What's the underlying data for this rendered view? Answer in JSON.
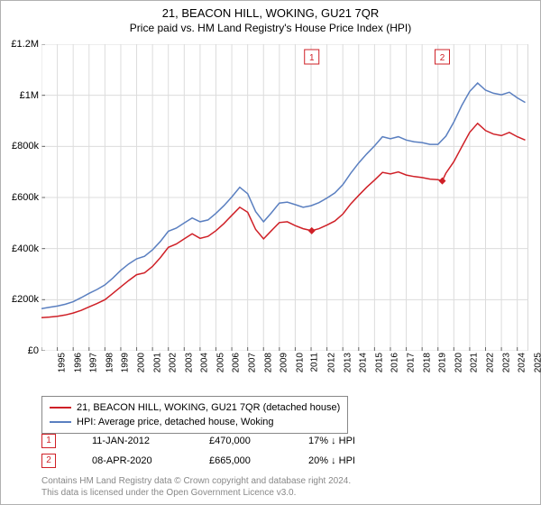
{
  "title": "21, BEACON HILL, WOKING, GU21 7QR",
  "subtitle": "Price paid vs. HM Land Registry's House Price Index (HPI)",
  "chart": {
    "type": "line",
    "background_color": "#ffffff",
    "plot_border_color": "#b0b0b0",
    "grid_color": "#dcdcdc",
    "font_family": "Arial",
    "title_fontsize": 13,
    "subtitle_fontsize": 12,
    "ylabel_fontsize": 11,
    "xlabel_fontsize": 10,
    "xlim": [
      1995,
      2025.7
    ],
    "ylim": [
      0,
      1200000
    ],
    "ytick_step": 200000,
    "yticks": [
      "£0",
      "£200k",
      "£400k",
      "£600k",
      "£800k",
      "£1M",
      "£1.2M"
    ],
    "xticks": [
      1995,
      1996,
      1997,
      1998,
      1999,
      2000,
      2001,
      2002,
      2003,
      2004,
      2005,
      2006,
      2007,
      2008,
      2009,
      2010,
      2011,
      2012,
      2013,
      2014,
      2015,
      2016,
      2017,
      2018,
      2019,
      2020,
      2021,
      2022,
      2023,
      2024,
      2025
    ],
    "series": [
      {
        "name": "21, BEACON HILL, WOKING, GU21 7QR (detached house)",
        "color": "#cf2027",
        "line_width": 1.5,
        "data": [
          [
            1995,
            130000
          ],
          [
            1995.5,
            132000
          ],
          [
            1996,
            135000
          ],
          [
            1996.5,
            140000
          ],
          [
            1997,
            148000
          ],
          [
            1997.5,
            158000
          ],
          [
            1998,
            172000
          ],
          [
            1998.5,
            185000
          ],
          [
            1999,
            200000
          ],
          [
            1999.5,
            225000
          ],
          [
            2000,
            250000
          ],
          [
            2000.5,
            275000
          ],
          [
            2001,
            298000
          ],
          [
            2001.5,
            305000
          ],
          [
            2002,
            330000
          ],
          [
            2002.5,
            365000
          ],
          [
            2003,
            405000
          ],
          [
            2003.5,
            418000
          ],
          [
            2004,
            438000
          ],
          [
            2004.5,
            458000
          ],
          [
            2005,
            440000
          ],
          [
            2005.5,
            448000
          ],
          [
            2006,
            470000
          ],
          [
            2006.5,
            498000
          ],
          [
            2007,
            530000
          ],
          [
            2007.5,
            562000
          ],
          [
            2008,
            542000
          ],
          [
            2008.5,
            475000
          ],
          [
            2009,
            438000
          ],
          [
            2009.5,
            470000
          ],
          [
            2010,
            502000
          ],
          [
            2010.5,
            505000
          ],
          [
            2011,
            490000
          ],
          [
            2011.5,
            478000
          ],
          [
            2012.04,
            470000
          ],
          [
            2012.5,
            478000
          ],
          [
            2013,
            492000
          ],
          [
            2013.5,
            508000
          ],
          [
            2014,
            535000
          ],
          [
            2014.5,
            575000
          ],
          [
            2015,
            608000
          ],
          [
            2015.5,
            640000
          ],
          [
            2016,
            668000
          ],
          [
            2016.5,
            698000
          ],
          [
            2017,
            692000
          ],
          [
            2017.5,
            700000
          ],
          [
            2018,
            688000
          ],
          [
            2018.5,
            682000
          ],
          [
            2019,
            678000
          ],
          [
            2019.5,
            672000
          ],
          [
            2020,
            670000
          ],
          [
            2020.27,
            665000
          ],
          [
            2020.5,
            695000
          ],
          [
            2021,
            740000
          ],
          [
            2021.5,
            798000
          ],
          [
            2022,
            855000
          ],
          [
            2022.5,
            890000
          ],
          [
            2023,
            862000
          ],
          [
            2023.5,
            848000
          ],
          [
            2024,
            842000
          ],
          [
            2024.5,
            855000
          ],
          [
            2025,
            838000
          ],
          [
            2025.5,
            825000
          ]
        ]
      },
      {
        "name": "HPI: Average price, detached house, Woking",
        "color": "#5a7fc0",
        "line_width": 1.5,
        "data": [
          [
            1995,
            165000
          ],
          [
            1995.5,
            170000
          ],
          [
            1996,
            175000
          ],
          [
            1996.5,
            182000
          ],
          [
            1997,
            192000
          ],
          [
            1997.5,
            208000
          ],
          [
            1998,
            225000
          ],
          [
            1998.5,
            240000
          ],
          [
            1999,
            258000
          ],
          [
            1999.5,
            285000
          ],
          [
            2000,
            315000
          ],
          [
            2000.5,
            340000
          ],
          [
            2001,
            360000
          ],
          [
            2001.5,
            370000
          ],
          [
            2002,
            395000
          ],
          [
            2002.5,
            428000
          ],
          [
            2003,
            468000
          ],
          [
            2003.5,
            480000
          ],
          [
            2004,
            500000
          ],
          [
            2004.5,
            520000
          ],
          [
            2005,
            505000
          ],
          [
            2005.5,
            512000
          ],
          [
            2006,
            538000
          ],
          [
            2006.5,
            568000
          ],
          [
            2007,
            602000
          ],
          [
            2007.5,
            640000
          ],
          [
            2008,
            615000
          ],
          [
            2008.5,
            545000
          ],
          [
            2009,
            505000
          ],
          [
            2009.5,
            540000
          ],
          [
            2010,
            578000
          ],
          [
            2010.5,
            582000
          ],
          [
            2011,
            572000
          ],
          [
            2011.5,
            562000
          ],
          [
            2012,
            568000
          ],
          [
            2012.5,
            580000
          ],
          [
            2013,
            598000
          ],
          [
            2013.5,
            618000
          ],
          [
            2014,
            650000
          ],
          [
            2014.5,
            695000
          ],
          [
            2015,
            735000
          ],
          [
            2015.5,
            770000
          ],
          [
            2016,
            802000
          ],
          [
            2016.5,
            838000
          ],
          [
            2017,
            830000
          ],
          [
            2017.5,
            838000
          ],
          [
            2018,
            825000
          ],
          [
            2018.5,
            818000
          ],
          [
            2019,
            815000
          ],
          [
            2019.5,
            808000
          ],
          [
            2020,
            808000
          ],
          [
            2020.5,
            840000
          ],
          [
            2021,
            895000
          ],
          [
            2021.5,
            960000
          ],
          [
            2022,
            1015000
          ],
          [
            2022.5,
            1048000
          ],
          [
            2023,
            1020000
          ],
          [
            2023.5,
            1008000
          ],
          [
            2024,
            1002000
          ],
          [
            2024.5,
            1012000
          ],
          [
            2025,
            990000
          ],
          [
            2025.5,
            972000
          ]
        ]
      }
    ],
    "markers": [
      {
        "label": "1",
        "x": 2012.04,
        "y": 470000,
        "color": "#cf2027"
      },
      {
        "label": "2",
        "x": 2020.27,
        "y": 665000,
        "color": "#cf2027"
      }
    ]
  },
  "legend": {
    "series1": "21, BEACON HILL, WOKING, GU21 7QR (detached house)",
    "series2": "HPI: Average price, detached house, Woking"
  },
  "sales": [
    {
      "marker": "1",
      "date": "11-JAN-2012",
      "price": "£470,000",
      "diff": "17% ↓ HPI"
    },
    {
      "marker": "2",
      "date": "08-APR-2020",
      "price": "£665,000",
      "diff": "20% ↓ HPI"
    }
  ],
  "footer": {
    "line1": "Contains HM Land Registry data © Crown copyright and database right 2024.",
    "line2": "This data is licensed under the Open Government Licence v3.0."
  }
}
